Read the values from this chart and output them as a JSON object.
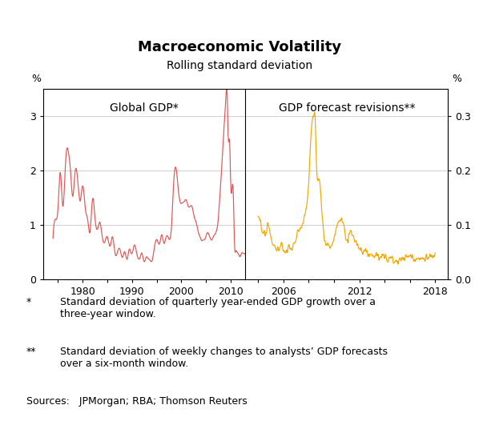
{
  "title": "Macroeconomic Volatility",
  "subtitle": "Rolling standard deviation",
  "left_panel_label": "Global GDP*",
  "right_panel_label": "GDP forecast revisions**",
  "left_ylabel": "%",
  "right_ylabel": "%",
  "left_ylim": [
    0,
    3.5
  ],
  "right_ylim": [
    0.0,
    0.35
  ],
  "left_yticks": [
    0,
    1,
    2,
    3
  ],
  "right_yticks": [
    0.0,
    0.1,
    0.2,
    0.3
  ],
  "left_xticks": [
    1975,
    1980,
    1985,
    1990,
    1995,
    2000,
    2005,
    2010
  ],
  "left_xticklabels": [
    "",
    "1980",
    "",
    "1990",
    "",
    "2000",
    "",
    "2010"
  ],
  "right_xticks": [
    2004,
    2006,
    2008,
    2010,
    2012,
    2014,
    2016,
    2018
  ],
  "right_xticklabels": [
    "",
    "2006",
    "",
    "",
    "2012",
    "",
    "",
    "2018"
  ],
  "left_xlim": [
    1972,
    2013
  ],
  "right_xlim": [
    2003,
    2019
  ],
  "line_color_left": "#e05555",
  "line_color_right": "#f0a800",
  "footnote1_star": "*",
  "footnote1_text": "Standard deviation of quarterly year-ended GDP growth over a\nthree-year window.",
  "footnote2_star": "**",
  "footnote2_text": "Standard deviation of weekly changes to analysts’ GDP forecasts\nover a six-month window.",
  "sources": "Sources:   JPMorgan; RBA; Thomson Reuters",
  "background_color": "#ffffff",
  "grid_color": "#bbbbbb",
  "text_color": "#000000"
}
